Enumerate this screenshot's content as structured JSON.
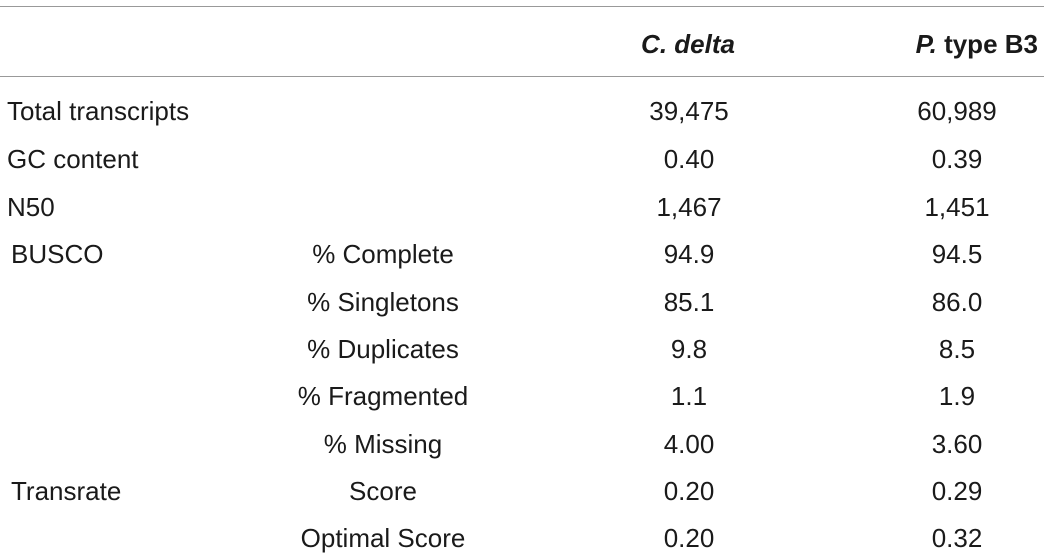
{
  "header": {
    "col_c_delta": "C. delta",
    "col_p_type_italic": "P.",
    "col_p_type_rest": " type B3"
  },
  "rows": [
    {
      "label": "Total transcripts",
      "sublabel": "",
      "c_delta": "39,475",
      "p_type": "60,989"
    },
    {
      "label": "GC content",
      "sublabel": "",
      "c_delta": "0.40",
      "p_type": "0.39"
    },
    {
      "label": "N50",
      "sublabel": "",
      "c_delta": "1,467",
      "p_type": "1,451"
    },
    {
      "label": "BUSCO",
      "sublabel": "% Complete",
      "c_delta": "94.9",
      "p_type": "94.5"
    },
    {
      "label": "",
      "sublabel": "% Singletons",
      "c_delta": "85.1",
      "p_type": "86.0"
    },
    {
      "label": "",
      "sublabel": "% Duplicates",
      "c_delta": "9.8",
      "p_type": "8.5"
    },
    {
      "label": "",
      "sublabel": "% Fragmented",
      "c_delta": "1.1",
      "p_type": "1.9"
    },
    {
      "label": "",
      "sublabel": "% Missing",
      "c_delta": "4.00",
      "p_type": "3.60"
    },
    {
      "label": "Transrate",
      "sublabel": "Score",
      "c_delta": "0.20",
      "p_type": "0.29"
    },
    {
      "label": "",
      "sublabel": "Optimal Score",
      "c_delta": "0.20",
      "p_type": "0.32"
    }
  ]
}
